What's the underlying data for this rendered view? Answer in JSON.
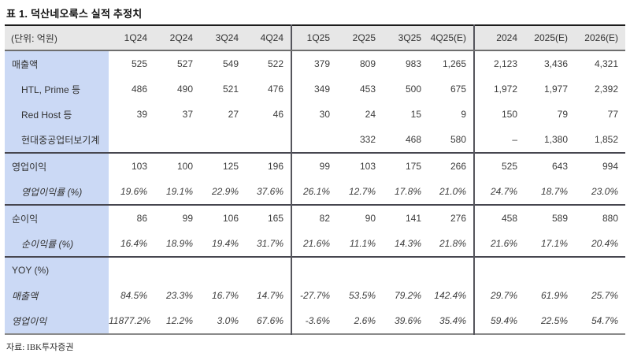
{
  "title": "표 1. 덕산네오룩스 실적 추정치",
  "source": "자료: IBK투자증권",
  "colors": {
    "label_column_bg": "#cbd9f5",
    "header_bg": "#e7e7e7",
    "section_border": "#46464f",
    "table_top_border": "#1c1c1c"
  },
  "table": {
    "unit_label": "(단위: 억원)",
    "columns": [
      "1Q24",
      "2Q24",
      "3Q24",
      "4Q24",
      "1Q25",
      "2Q25",
      "3Q25",
      "4Q25(E)",
      "2024",
      "2025(E)",
      "2026(E)"
    ],
    "divider_before_columns": [
      4,
      8
    ],
    "rows": [
      {
        "label": "매출액",
        "indent": false,
        "italic": false,
        "section": false,
        "values": [
          "525",
          "527",
          "549",
          "522",
          "379",
          "809",
          "983",
          "1,265",
          "2,123",
          "3,436",
          "4,321"
        ]
      },
      {
        "label": "HTL, Prime 등",
        "indent": true,
        "italic": false,
        "section": false,
        "values": [
          "486",
          "490",
          "521",
          "476",
          "349",
          "453",
          "500",
          "675",
          "1,972",
          "1,977",
          "2,392"
        ]
      },
      {
        "label": "Red Host 등",
        "indent": true,
        "italic": false,
        "section": false,
        "values": [
          "39",
          "37",
          "27",
          "46",
          "30",
          "24",
          "15",
          "9",
          "150",
          "79",
          "77"
        ]
      },
      {
        "label": "현대중공업터보기계",
        "indent": true,
        "italic": false,
        "section": false,
        "values": [
          "",
          "",
          "",
          "",
          "",
          "332",
          "468",
          "580",
          "–",
          "1,380",
          "1,852"
        ]
      },
      {
        "label": "영업이익",
        "indent": false,
        "italic": false,
        "section": true,
        "values": [
          "103",
          "100",
          "125",
          "196",
          "99",
          "103",
          "175",
          "266",
          "525",
          "643",
          "994"
        ]
      },
      {
        "label": "영업이익률 (%)",
        "indent": true,
        "italic": true,
        "section": false,
        "values": [
          "19.6%",
          "19.1%",
          "22.9%",
          "37.6%",
          "26.1%",
          "12.7%",
          "17.8%",
          "21.0%",
          "24.7%",
          "18.7%",
          "23.0%"
        ]
      },
      {
        "label": "순이익",
        "indent": false,
        "italic": false,
        "section": true,
        "values": [
          "86",
          "99",
          "106",
          "165",
          "82",
          "90",
          "141",
          "276",
          "458",
          "589",
          "880"
        ]
      },
      {
        "label": "순이익률 (%)",
        "indent": true,
        "italic": true,
        "section": false,
        "values": [
          "16.4%",
          "18.9%",
          "19.4%",
          "31.7%",
          "21.6%",
          "11.1%",
          "14.3%",
          "21.8%",
          "21.6%",
          "17.1%",
          "20.4%"
        ]
      },
      {
        "label": "YOY (%)",
        "indent": false,
        "italic": false,
        "section": true,
        "values": [
          "",
          "",
          "",
          "",
          "",
          "",
          "",
          "",
          "",
          "",
          ""
        ]
      },
      {
        "label": "매출액",
        "indent": false,
        "italic": true,
        "section": false,
        "values": [
          "84.5%",
          "23.3%",
          "16.7%",
          "14.7%",
          "-27.7%",
          "53.5%",
          "79.2%",
          "142.4%",
          "29.7%",
          "61.9%",
          "25.7%"
        ]
      },
      {
        "label": "영업이익",
        "indent": false,
        "italic": true,
        "section": false,
        "values": [
          "11877.2%",
          "12.2%",
          "3.0%",
          "67.6%",
          "-3.6%",
          "2.6%",
          "39.6%",
          "35.4%",
          "59.4%",
          "22.5%",
          "54.7%"
        ]
      }
    ]
  }
}
